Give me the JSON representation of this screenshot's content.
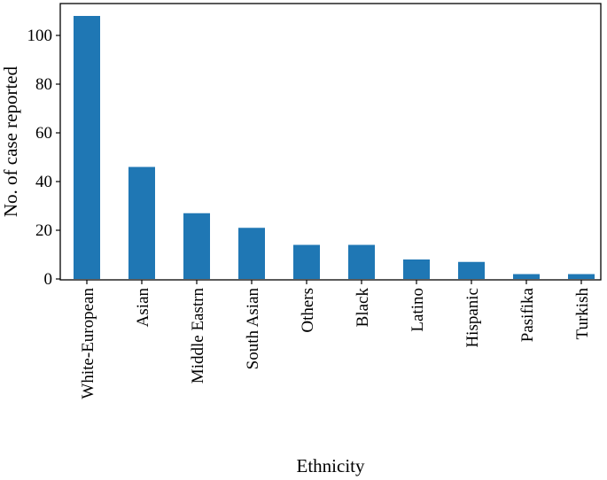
{
  "chart_data": {
    "type": "bar",
    "categories": [
      "White-European",
      "Asian",
      "Middle Eastrn",
      "South Asian",
      "Others",
      "Black",
      "Latino",
      "Hispanic",
      "Pasifika",
      "Turkish"
    ],
    "values": [
      108,
      46,
      27,
      21,
      14,
      14,
      8,
      7,
      2,
      2
    ],
    "xlabel": "Ethnicity",
    "ylabel": "No. of case reported",
    "yticks": [
      0,
      20,
      40,
      60,
      80,
      100
    ],
    "ylim": [
      0,
      113
    ],
    "bar_color": "#1f77b4",
    "grid": false,
    "legend": "none"
  }
}
